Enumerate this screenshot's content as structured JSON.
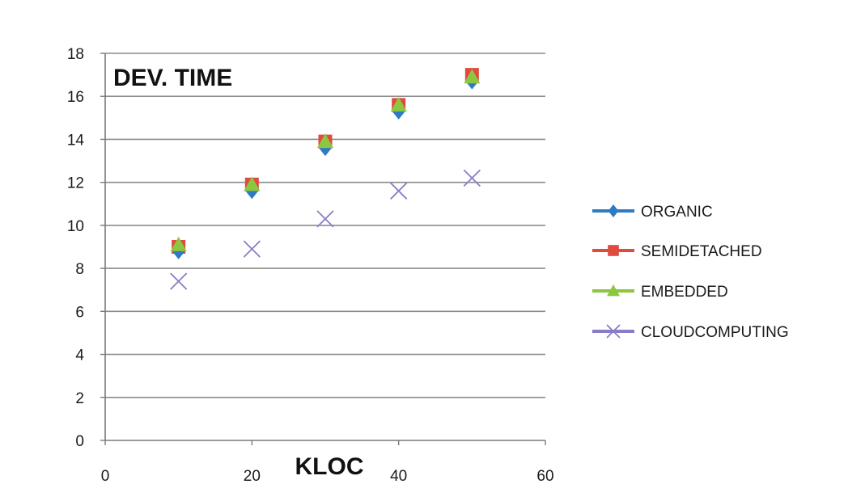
{
  "chart_data": {
    "type": "scatter",
    "title": "DEV. TIME",
    "xlabel": "KLOC",
    "ylabel": "",
    "xlim": [
      0,
      60
    ],
    "ylim": [
      0,
      18
    ],
    "xticks": [
      0,
      20,
      40,
      60
    ],
    "yticks": [
      0,
      2,
      4,
      6,
      8,
      10,
      12,
      14,
      16,
      18
    ],
    "grid": "horizontal",
    "legend_position": "right",
    "x": [
      10,
      20,
      30,
      40,
      50
    ],
    "series": [
      {
        "name": "ORGANIC",
        "marker": "diamond",
        "color": "#2e7bc4",
        "values": [
          8.8,
          11.6,
          13.6,
          15.3,
          16.7
        ]
      },
      {
        "name": "SEMIDETACHED",
        "marker": "square",
        "color": "#e04a3f",
        "values": [
          9.0,
          11.9,
          13.9,
          15.6,
          17.0
        ]
      },
      {
        "name": "EMBEDDED",
        "marker": "triangle",
        "color": "#8dc63f",
        "values": [
          9.1,
          11.9,
          13.9,
          15.6,
          16.9
        ]
      },
      {
        "name": "CLOUDCOMPUTING",
        "marker": "x",
        "color": "#8b7cc8",
        "values": [
          7.4,
          8.9,
          10.3,
          11.6,
          12.2
        ]
      }
    ]
  }
}
